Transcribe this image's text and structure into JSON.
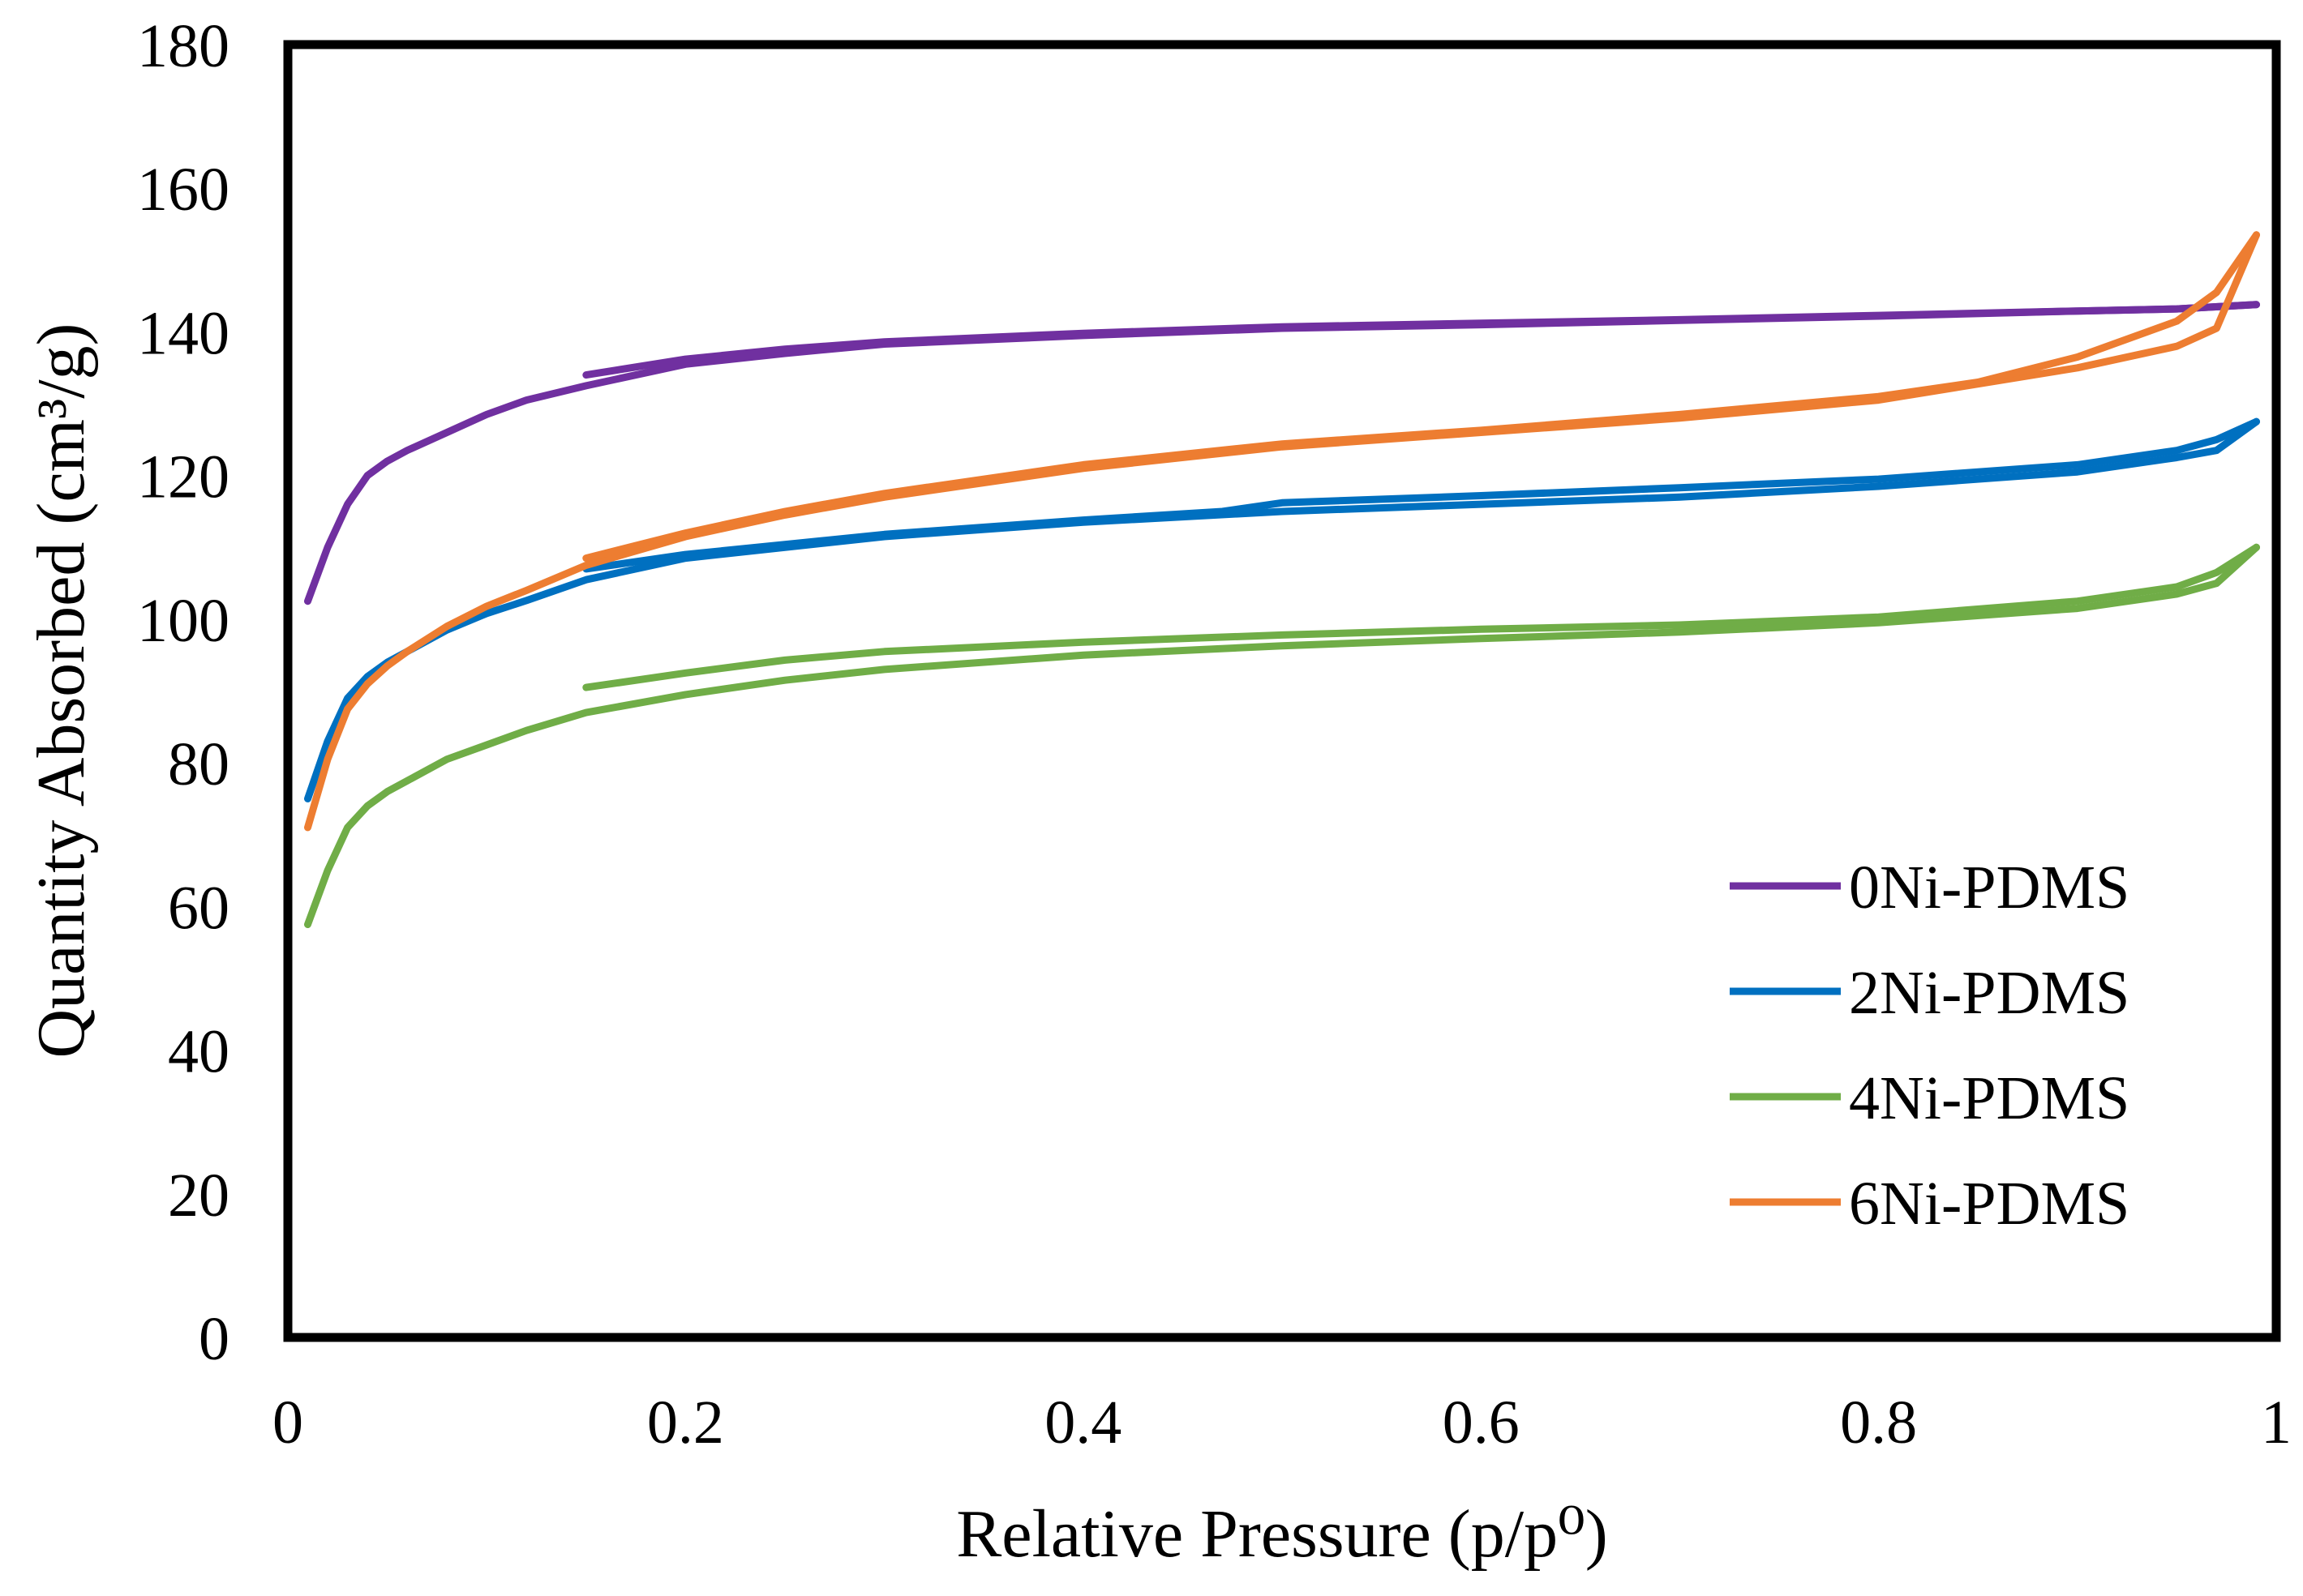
{
  "chart_data": {
    "type": "line",
    "title": "",
    "xlabel": "Relative Pressure (p/p⁰)",
    "ylabel": "Quantity Absorbed (cm³/g)",
    "xlim": [
      0,
      1
    ],
    "ylim": [
      0,
      180
    ],
    "xticks": [
      0,
      0.2,
      0.4,
      0.6,
      0.8,
      1
    ],
    "xtick_labels": [
      "0",
      "0.2",
      "0.4",
      "0.6",
      "0.8",
      "1"
    ],
    "yticks": [
      0,
      20,
      40,
      60,
      80,
      100,
      120,
      140,
      160,
      180
    ],
    "ytick_labels": [
      "0",
      "20",
      "40",
      "60",
      "80",
      "100",
      "120",
      "140",
      "160",
      "180"
    ],
    "grid": false,
    "legend_position": "lower-right",
    "series": [
      {
        "name": "0Ni-PDMS",
        "color": "#7030A0",
        "adsorption": [
          [
            0.01,
            102.5
          ],
          [
            0.02,
            110
          ],
          [
            0.03,
            116
          ],
          [
            0.04,
            120
          ],
          [
            0.05,
            122
          ],
          [
            0.06,
            123.5
          ],
          [
            0.08,
            126
          ],
          [
            0.1,
            128.5
          ],
          [
            0.12,
            130.5
          ],
          [
            0.15,
            132.5
          ],
          [
            0.2,
            135.5
          ],
          [
            0.25,
            137
          ],
          [
            0.3,
            138.3
          ],
          [
            0.4,
            139.5
          ],
          [
            0.5,
            140.5
          ],
          [
            0.6,
            141
          ],
          [
            0.7,
            141.6
          ],
          [
            0.8,
            142.2
          ],
          [
            0.9,
            142.9
          ],
          [
            0.95,
            143.2
          ],
          [
            0.99,
            143.8
          ]
        ],
        "desorption": [
          [
            0.99,
            143.8
          ],
          [
            0.95,
            143.2
          ],
          [
            0.9,
            142.9
          ],
          [
            0.8,
            142.3
          ],
          [
            0.7,
            141.7
          ],
          [
            0.6,
            141.2
          ],
          [
            0.5,
            140.7
          ],
          [
            0.4,
            139.8
          ],
          [
            0.3,
            138.6
          ],
          [
            0.25,
            137.6
          ],
          [
            0.2,
            136.2
          ],
          [
            0.15,
            134
          ]
        ]
      },
      {
        "name": "2Ni-PDMS",
        "color": "#0070C0",
        "adsorption": [
          [
            0.01,
            75
          ],
          [
            0.02,
            83
          ],
          [
            0.03,
            89
          ],
          [
            0.04,
            92
          ],
          [
            0.05,
            94
          ],
          [
            0.06,
            95.5
          ],
          [
            0.08,
            98.5
          ],
          [
            0.1,
            100.8
          ],
          [
            0.12,
            102.6
          ],
          [
            0.15,
            105.5
          ],
          [
            0.2,
            108.5
          ],
          [
            0.25,
            110
          ],
          [
            0.3,
            111.5
          ],
          [
            0.4,
            113.5
          ],
          [
            0.5,
            115
          ],
          [
            0.6,
            116
          ],
          [
            0.7,
            117
          ],
          [
            0.8,
            118.5
          ],
          [
            0.9,
            120.5
          ],
          [
            0.95,
            122.5
          ],
          [
            0.97,
            123.5
          ],
          [
            0.99,
            127.5
          ]
        ],
        "desorption": [
          [
            0.99,
            127.5
          ],
          [
            0.97,
            125
          ],
          [
            0.95,
            123.5
          ],
          [
            0.9,
            121.5
          ],
          [
            0.8,
            119.5
          ],
          [
            0.7,
            118.3
          ],
          [
            0.6,
            117.2
          ],
          [
            0.5,
            116.2
          ],
          [
            0.47,
            115
          ],
          [
            0.4,
            113.8
          ],
          [
            0.3,
            111.8
          ],
          [
            0.25,
            110.4
          ],
          [
            0.2,
            109
          ],
          [
            0.15,
            107
          ]
        ]
      },
      {
        "name": "4Ni-PDMS",
        "color": "#70AD47",
        "adsorption": [
          [
            0.01,
            57.5
          ],
          [
            0.02,
            65
          ],
          [
            0.03,
            71
          ],
          [
            0.04,
            74
          ],
          [
            0.05,
            76
          ],
          [
            0.06,
            77.5
          ],
          [
            0.08,
            80.5
          ],
          [
            0.1,
            82.5
          ],
          [
            0.12,
            84.5
          ],
          [
            0.15,
            87
          ],
          [
            0.2,
            89.5
          ],
          [
            0.25,
            91.5
          ],
          [
            0.3,
            93
          ],
          [
            0.4,
            95
          ],
          [
            0.5,
            96.3
          ],
          [
            0.6,
            97.3
          ],
          [
            0.7,
            98.2
          ],
          [
            0.8,
            99.5
          ],
          [
            0.9,
            101.5
          ],
          [
            0.95,
            103.5
          ],
          [
            0.97,
            105
          ],
          [
            0.99,
            110
          ]
        ],
        "desorption": [
          [
            0.99,
            110
          ],
          [
            0.97,
            106.5
          ],
          [
            0.95,
            104.5
          ],
          [
            0.9,
            102.5
          ],
          [
            0.8,
            100.3
          ],
          [
            0.7,
            99.2
          ],
          [
            0.6,
            98.6
          ],
          [
            0.5,
            97.8
          ],
          [
            0.4,
            96.8
          ],
          [
            0.3,
            95.5
          ],
          [
            0.25,
            94.3
          ],
          [
            0.2,
            92.5
          ],
          [
            0.15,
            90.5
          ]
        ]
      },
      {
        "name": "6Ni-PDMS",
        "color": "#ED7D31",
        "adsorption": [
          [
            0.01,
            71
          ],
          [
            0.02,
            80.5
          ],
          [
            0.03,
            87.5
          ],
          [
            0.04,
            91
          ],
          [
            0.05,
            93.5
          ],
          [
            0.06,
            95.5
          ],
          [
            0.08,
            99
          ],
          [
            0.1,
            101.8
          ],
          [
            0.12,
            104
          ],
          [
            0.15,
            107.5
          ],
          [
            0.2,
            111.5
          ],
          [
            0.25,
            114.5
          ],
          [
            0.3,
            117
          ],
          [
            0.4,
            121
          ],
          [
            0.5,
            124
          ],
          [
            0.6,
            126
          ],
          [
            0.7,
            128
          ],
          [
            0.8,
            130.5
          ],
          [
            0.9,
            135
          ],
          [
            0.95,
            138
          ],
          [
            0.97,
            140.5
          ],
          [
            0.99,
            153.5
          ]
        ],
        "desorption": [
          [
            0.99,
            153.5
          ],
          [
            0.97,
            145.5
          ],
          [
            0.95,
            141.5
          ],
          [
            0.9,
            136.5
          ],
          [
            0.85,
            133
          ],
          [
            0.8,
            131
          ],
          [
            0.7,
            128.5
          ],
          [
            0.6,
            126.3
          ],
          [
            0.5,
            124.4
          ],
          [
            0.4,
            121.5
          ],
          [
            0.3,
            117.5
          ],
          [
            0.25,
            115
          ],
          [
            0.2,
            112
          ],
          [
            0.15,
            108.5
          ]
        ]
      }
    ]
  }
}
